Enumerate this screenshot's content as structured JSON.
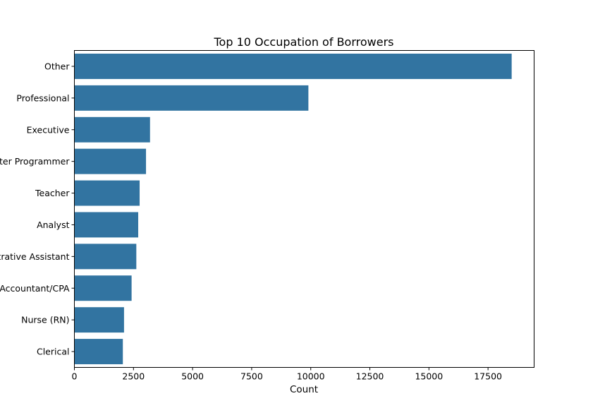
{
  "chart_data": {
    "type": "bar",
    "orientation": "horizontal",
    "title": "Top 10 Occupation of Borrowers",
    "xlabel": "Count",
    "ylabel": "",
    "categories": [
      "Other",
      "Professional",
      "Executive",
      "Computer Programmer",
      "Teacher",
      "Analyst",
      "Administrative Assistant",
      "Accountant/CPA",
      "Nurse (RN)",
      "Clerical"
    ],
    "values": [
      18500,
      9900,
      3200,
      3030,
      2760,
      2700,
      2620,
      2420,
      2100,
      2050
    ],
    "xlim": [
      0,
      19450
    ],
    "xticks": [
      0,
      2500,
      5000,
      7500,
      10000,
      12500,
      15000,
      17500
    ],
    "grid": false,
    "bar_color": "#3274a1"
  }
}
